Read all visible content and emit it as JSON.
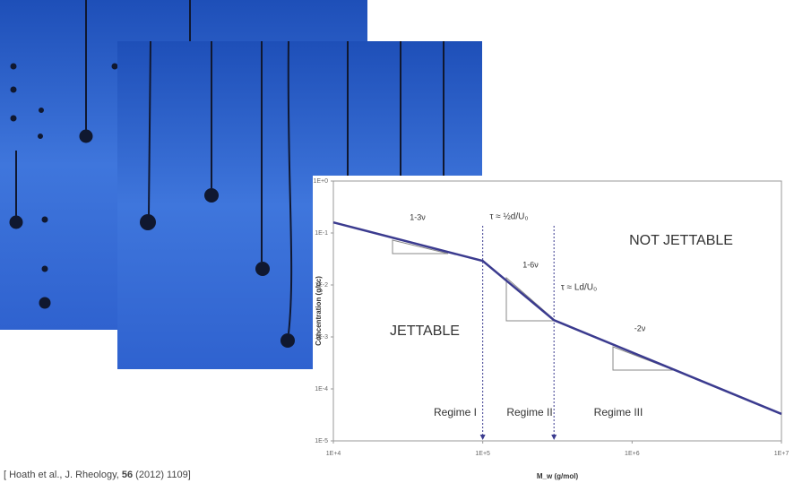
{
  "caption": {
    "before": "[ Hoath et al., J. Rheology, ",
    "volume": "56",
    "after": " (2012) 1109]"
  },
  "chart_data": {
    "type": "line",
    "log_x": true,
    "log_y": true,
    "x_label": "M_w (g/mol)",
    "y_label": "Concentration (g/cc)",
    "x": [
      10000,
      100000,
      300000,
      10000000
    ],
    "values": [
      0.16,
      0.029,
      0.0021,
      3.3e-05
    ],
    "color": "#3b3b8f",
    "xlim": [
      10000,
      10000000
    ],
    "xticks": [
      {
        "value": 10000,
        "label": "1E+4"
      },
      {
        "value": 100000,
        "label": "1E+5"
      },
      {
        "value": 1000000,
        "label": "1E+6"
      },
      {
        "value": 10000000,
        "label": "1E+7"
      }
    ],
    "ylim": [
      1e-05,
      1
    ],
    "yticks": [
      {
        "value": 1e-05,
        "label": "1E-5"
      },
      {
        "value": 0.0001,
        "label": "1E-4"
      },
      {
        "value": 0.001,
        "label": "1E-3"
      },
      {
        "value": 0.01,
        "label": "1E-2"
      },
      {
        "value": 0.1,
        "label": "1E-1"
      },
      {
        "value": 1,
        "label": "1E+0"
      }
    ],
    "vlines": [
      100000,
      300000
    ],
    "annotations": [
      "1-3ν",
      "τ ≈ ½d/U₀",
      "1-6ν",
      "τ ≈ Ld/U₀",
      "-2ν",
      "NOT JETTABLE",
      "JETTABLE",
      "Regime I",
      "Regime II",
      "Regime III"
    ]
  }
}
